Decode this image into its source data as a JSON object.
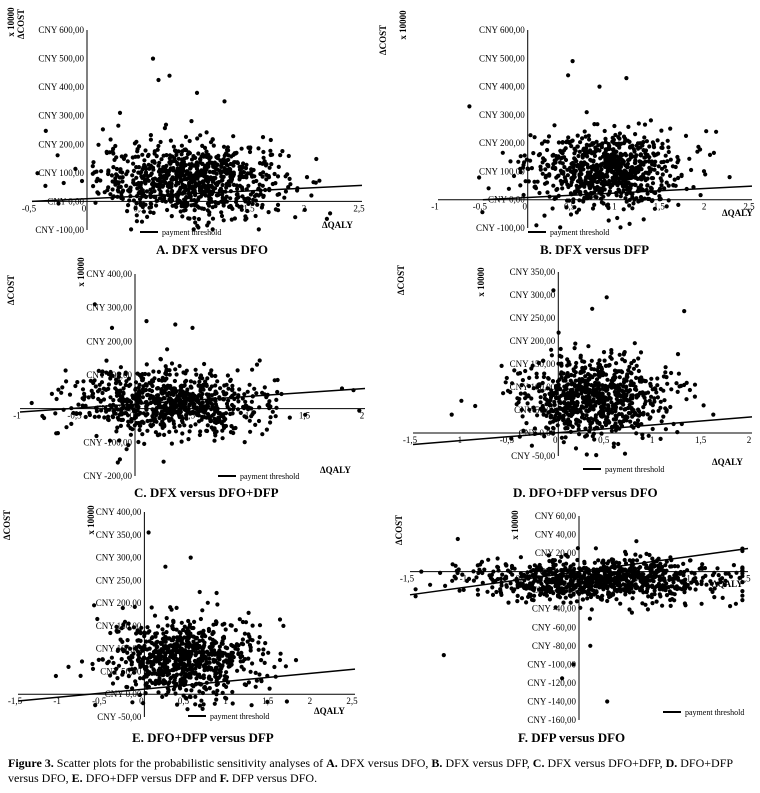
{
  "chart_data": [
    {
      "type": "scatter",
      "panel": "A",
      "caption": "A. DFX versus DFO",
      "xlabel": "ΔQALY",
      "ylabel": "ΔCOST",
      "yunit": "x 10000",
      "xlim": [
        -0.5,
        2.5
      ],
      "ylim": [
        -100,
        600
      ],
      "xticks": [
        "-0,5",
        "0",
        "0,5",
        "1",
        "1,5",
        "2",
        "2,5"
      ],
      "xtick_values": [
        -0.5,
        0,
        0.5,
        1,
        1.5,
        2,
        2.5
      ],
      "yticks": [
        "CNY -100,00",
        "CNY 0,00",
        "CNY 100,00",
        "CNY 200,00",
        "CNY 300,00",
        "CNY 400,00",
        "CNY 500,00",
        "CNY 600,00"
      ],
      "ytick_values": [
        -100,
        0,
        100,
        200,
        300,
        400,
        500,
        600
      ],
      "legend": "payment threshold",
      "threshold": [
        [
          -0.5,
          0
        ],
        [
          2.5,
          56
        ]
      ],
      "cloud": {
        "n": 900,
        "cx": 0.95,
        "cy": 75,
        "sx": 0.42,
        "sy": 65
      },
      "outliers": [
        [
          0.6,
          500
        ],
        [
          0.75,
          440
        ],
        [
          0.65,
          425
        ],
        [
          1.0,
          380
        ],
        [
          1.25,
          350
        ],
        [
          0.3,
          310
        ],
        [
          1.6,
          225
        ]
      ]
    },
    {
      "type": "scatter",
      "panel": "B",
      "caption": "B. DFX versus DFP",
      "xlabel": "ΔQALY",
      "ylabel": "ΔCOST",
      "yunit": "x 10000",
      "xlim": [
        -1,
        2.5
      ],
      "ylim": [
        -100,
        600
      ],
      "xticks": [
        "-1",
        "-0,5",
        "0",
        "0,5",
        "1",
        "1,5",
        "2",
        "2,5"
      ],
      "xtick_values": [
        -1,
        -0.5,
        0,
        0.5,
        1,
        1.5,
        2,
        2.5
      ],
      "yticks": [
        "CNY -100,00",
        "CNY 0,00",
        "CNY 100,00",
        "CNY 200,00",
        "CNY 300,00",
        "CNY 400,00",
        "CNY 500,00",
        "CNY 600,00"
      ],
      "ytick_values": [
        -100,
        0,
        100,
        200,
        300,
        400,
        500,
        600
      ],
      "legend": "payment threshold",
      "threshold": [
        [
          -0.5,
          0
        ],
        [
          2.5,
          48
        ]
      ],
      "cloud": {
        "n": 800,
        "cx": 0.85,
        "cy": 105,
        "sx": 0.42,
        "sy": 65
      },
      "outliers": [
        [
          -0.65,
          330
        ],
        [
          0.5,
          490
        ],
        [
          0.45,
          440
        ],
        [
          0.8,
          400
        ],
        [
          1.1,
          430
        ],
        [
          1.3,
          220
        ],
        [
          2.25,
          80
        ],
        [
          2.1,
          240
        ]
      ]
    },
    {
      "type": "scatter",
      "panel": "C",
      "caption": "C. DFX versus DFO+DFP",
      "xlabel": "ΔQALY",
      "ylabel": "ΔCOST",
      "yunit": "x 10000",
      "xlim": [
        -1,
        2
      ],
      "ylim": [
        -200,
        400
      ],
      "xticks": [
        "-1",
        "-0,5",
        "0",
        "0,5",
        "1",
        "1,5",
        "2"
      ],
      "xtick_values": [
        -1,
        -0.5,
        0,
        0.5,
        1,
        1.5,
        2
      ],
      "yticks": [
        "CNY -200,00",
        "CNY -100,00",
        "CNY 0,00",
        "CNY 100,00",
        "CNY 200,00",
        "CNY 300,00",
        "CNY 400,00"
      ],
      "ytick_values": [
        -200,
        -100,
        0,
        100,
        200,
        300,
        400
      ],
      "legend": "payment threshold",
      "threshold": [
        [
          -1,
          -10
        ],
        [
          2,
          60
        ]
      ],
      "cloud": {
        "n": 800,
        "cx": 0.3,
        "cy": 15,
        "sx": 0.42,
        "sy": 50
      },
      "outliers": [
        [
          -0.35,
          310
        ],
        [
          -0.2,
          240
        ],
        [
          0.1,
          260
        ],
        [
          0.35,
          250
        ],
        [
          0.5,
          240
        ],
        [
          1.8,
          60
        ],
        [
          1.9,
          55
        ],
        [
          -0.15,
          -160
        ]
      ]
    },
    {
      "type": "scatter",
      "panel": "D",
      "caption": "D. DFO+DFP versus DFO",
      "xlabel": "ΔQALY",
      "ylabel": "ΔCOST",
      "yunit": "x 10000",
      "xlim": [
        -1.5,
        2
      ],
      "ylim": [
        -50,
        350
      ],
      "xticks": [
        "-1,5",
        "-1",
        "-0,5",
        "0",
        "0,5",
        "1",
        "1,5",
        "2"
      ],
      "xtick_values": [
        -1.5,
        -1,
        -0.5,
        0,
        0.5,
        1,
        1.5,
        2
      ],
      "yticks": [
        "CNY -50,00",
        "CNY 0,00",
        "CNY 50,00",
        "CNY 100,00",
        "CNY 150,00",
        "CNY 200,00",
        "CNY 250,00",
        "CNY 300,00",
        "CNY 350,00"
      ],
      "ytick_values": [
        -50,
        0,
        50,
        100,
        150,
        200,
        250,
        300,
        350
      ],
      "legend": "payment threshold",
      "threshold": [
        [
          -1.5,
          -25
        ],
        [
          2,
          35
        ]
      ],
      "cloud": {
        "n": 800,
        "cx": 0.35,
        "cy": 75,
        "sx": 0.38,
        "sy": 45
      },
      "outliers": [
        [
          -0.05,
          310
        ],
        [
          0.5,
          295
        ],
        [
          0.35,
          270
        ],
        [
          1.3,
          265
        ],
        [
          -1.1,
          40
        ],
        [
          -1.0,
          70
        ],
        [
          1.6,
          40
        ],
        [
          1.5,
          60
        ]
      ]
    },
    {
      "type": "scatter",
      "panel": "E",
      "caption": "E. DFO+DFP versus DFP",
      "xlabel": "ΔQALY",
      "ylabel": "ΔCOST",
      "yunit": "x 10000",
      "xlim": [
        -1.5,
        2.5
      ],
      "ylim": [
        -50,
        400
      ],
      "xticks": [
        "-1,5",
        "-1",
        "-0,5",
        "0",
        "0,5",
        "1",
        "1,5",
        "2",
        "2,5"
      ],
      "xtick_values": [
        -1.5,
        -1,
        -0.5,
        0,
        0.5,
        1,
        1.5,
        2,
        2.5
      ],
      "yticks": [
        "CNY -50,00",
        "CNY 0,00",
        "CNY 50,00",
        "CNY 100,00",
        "CNY 150,00",
        "CNY 200,00",
        "CNY 250,00",
        "CNY 300,00",
        "CNY 350,00",
        "CNY 400,00"
      ],
      "ytick_values": [
        -50,
        0,
        50,
        100,
        150,
        200,
        250,
        300,
        350,
        400
      ],
      "legend": "payment threshold",
      "threshold": [
        [
          -1.5,
          -15
        ],
        [
          2.5,
          55
        ]
      ],
      "cloud": {
        "n": 800,
        "cx": 0.45,
        "cy": 80,
        "sx": 0.42,
        "sy": 45
      },
      "outliers": [
        [
          0.05,
          355
        ],
        [
          0.55,
          300
        ],
        [
          0.25,
          280
        ],
        [
          -1.05,
          40
        ],
        [
          -0.9,
          60
        ],
        [
          1.65,
          150
        ],
        [
          1.8,
          75
        ]
      ]
    },
    {
      "type": "scatter",
      "panel": "F",
      "caption": "F. DFP versus DFO",
      "xlabel": "ΔQALY",
      "ylabel": "ΔCOST",
      "yunit": "x 10000",
      "xlim": [
        -1.5,
        1.5
      ],
      "ylim": [
        -160,
        60
      ],
      "xticks": [
        "-1,5",
        "-1",
        "-0,5",
        "0",
        "0,5",
        "1",
        "1,5"
      ],
      "xtick_values": [
        -1.5,
        -1,
        -0.5,
        0,
        0.5,
        1,
        1.5
      ],
      "yticks": [
        "CNY -160,00",
        "CNY -140,00",
        "CNY -120,00",
        "CNY -100,00",
        "CNY -80,00",
        "CNY -60,00",
        "CNY -40,00",
        "CNY -20,00",
        "CNY 0,00",
        "CNY 20,00",
        "CNY 40,00",
        "CNY 60,00"
      ],
      "ytick_values": [
        -160,
        -140,
        -120,
        -100,
        -80,
        -60,
        -40,
        -20,
        0,
        20,
        40,
        60
      ],
      "legend": "payment threshold",
      "threshold": [
        [
          -1.5,
          -25
        ],
        [
          1.5,
          25
        ]
      ],
      "cloud": {
        "n": 900,
        "cx": 0.15,
        "cy": -8,
        "sx": 0.55,
        "sy": 12
      },
      "outliers": [
        [
          0.25,
          -140
        ],
        [
          -0.15,
          -115
        ],
        [
          -0.05,
          -100
        ],
        [
          -1.2,
          -90
        ],
        [
          0.1,
          -80
        ],
        [
          1.3,
          -10
        ],
        [
          -1.4,
          0
        ]
      ]
    }
  ],
  "caption": {
    "figure_label": "Figure 3.",
    "text1": " Scatter plots for the probabilistic sensitivity analyses of ",
    "a": "A.",
    "t_a": " DFX versus DFO, ",
    "b": "B.",
    "t_b": " DFX versus DFP, ",
    "c": "C.",
    "t_c": " DFX versus DFO+DFP, ",
    "d": "D.",
    "t_d": " DFO+DFP  versus DFO, ",
    "e": "E.",
    "t_e": " DFO+DFP  versus DFP ",
    "and": " and ",
    "f": "F.",
    "t_f": " DFP versus DFO."
  }
}
